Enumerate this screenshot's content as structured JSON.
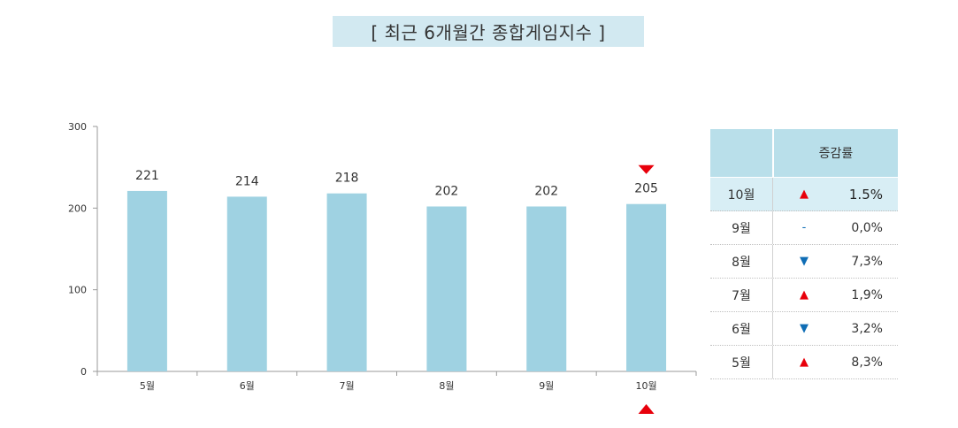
{
  "title": "[ 최근 6개월간 종합게임지수 ]",
  "colors": {
    "bar": "#9fd2e2",
    "title_bg": "#d2e9f1",
    "up": "#e8000b",
    "down": "#0f6db5"
  },
  "chart_data": {
    "type": "bar",
    "title": "[ 최근 6개월간 종합게임지수 ]",
    "categories": [
      "5월",
      "6월",
      "7월",
      "8월",
      "9월",
      "10월"
    ],
    "values": [
      221,
      214,
      218,
      202,
      202,
      205
    ],
    "ylim": [
      0,
      300
    ],
    "yticks": [
      "0",
      "100",
      "200",
      "300"
    ],
    "grid": false,
    "highlight_category": "10월"
  },
  "table": {
    "header": "증감률",
    "rows": [
      {
        "month": "10월",
        "arrow": "up",
        "symbol": "▲",
        "rate": "1.5%",
        "highlight": true
      },
      {
        "month": "9월",
        "arrow": "flat",
        "symbol": "-",
        "rate": "0,0%",
        "highlight": false
      },
      {
        "month": "8월",
        "arrow": "down",
        "symbol": "▼",
        "rate": "7,3%",
        "highlight": false
      },
      {
        "month": "7월",
        "arrow": "up",
        "symbol": "▲",
        "rate": "1,9%",
        "highlight": false
      },
      {
        "month": "6월",
        "arrow": "down",
        "symbol": "▼",
        "rate": "3,2%",
        "highlight": false
      },
      {
        "month": "5월",
        "arrow": "up",
        "symbol": "▲",
        "rate": "8,3%",
        "highlight": false
      }
    ]
  }
}
